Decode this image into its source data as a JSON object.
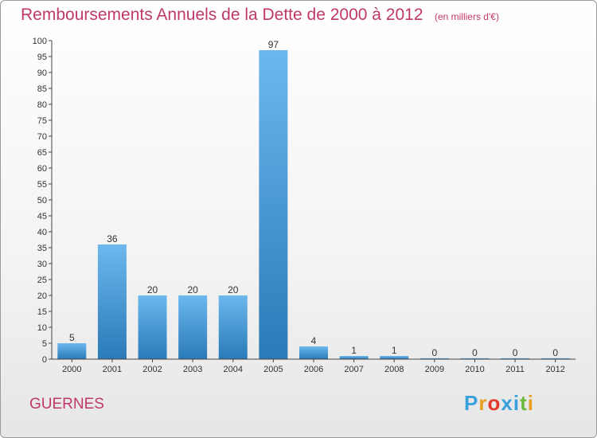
{
  "title": "Remboursements Annuels de la Dette de 2000 à 2012",
  "unit": "(en milliers d'€)",
  "commune": "GUERNES",
  "brand": "Proxiti",
  "colors": {
    "title": "#c0386b",
    "bar_light": "#6cb8ee",
    "bar_dark": "#2a7ab8",
    "logo": [
      "#3aa0dc",
      "#e8a020",
      "#e23a2a",
      "#3aa0dc",
      "#3aa0dc",
      "#6cba3a",
      "#e8a020"
    ]
  },
  "chart_data": {
    "type": "bar",
    "title": "Remboursements Annuels de la Dette de 2000 à 2012",
    "categories": [
      "2000",
      "2001",
      "2002",
      "2003",
      "2004",
      "2005",
      "2006",
      "2007",
      "2008",
      "2009",
      "2010",
      "2011",
      "2012"
    ],
    "values": [
      5,
      36,
      20,
      20,
      20,
      97,
      4,
      1,
      1,
      0,
      0,
      0,
      0
    ],
    "data_labels": [
      "5",
      "36",
      "20",
      "20",
      "20",
      "97",
      "4",
      "1",
      "1",
      "0",
      "0",
      "0",
      "0"
    ],
    "yticks": [
      "0",
      "5",
      "10",
      "15",
      "20",
      "25",
      "30",
      "35",
      "40",
      "45",
      "50",
      "55",
      "60",
      "65",
      "70",
      "75",
      "80",
      "85",
      "90",
      "95",
      "100"
    ],
    "ylim": [
      0,
      100
    ],
    "grid": false,
    "xlabel": "",
    "ylabel": ""
  }
}
